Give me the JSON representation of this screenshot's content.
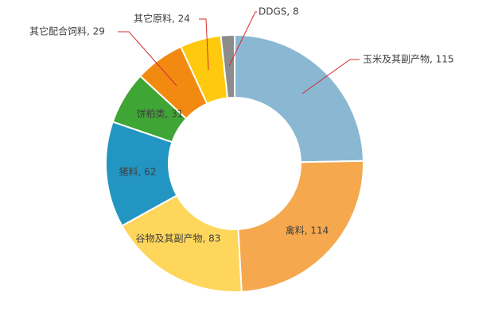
{
  "chart_data": {
    "type": "pie",
    "donut": true,
    "title": "",
    "slices": [
      {
        "name": "玉米及其副产物",
        "value": 115,
        "color": "#8AB8D3",
        "label": "玉米及其副产物, 115"
      },
      {
        "name": "禽料",
        "value": 114,
        "color": "#F5A84E",
        "label": "禽料, 114"
      },
      {
        "name": "谷物及其副产物",
        "value": 83,
        "color": "#FFD65C",
        "label": "谷物及其副产物, 83"
      },
      {
        "name": "猪料",
        "value": 62,
        "color": "#2395C2",
        "label": "猪料, 62"
      },
      {
        "name": "饼粕类",
        "value": 31,
        "color": "#3FA535",
        "label": "饼粕类, 31"
      },
      {
        "name": "其它配合饲料",
        "value": 29,
        "color": "#F28A12",
        "label": "其它配合饲料, 29"
      },
      {
        "name": "其它原料",
        "value": 24,
        "color": "#FFC90E",
        "label": "其它原料, 24"
      },
      {
        "name": "DDGS",
        "value": 8,
        "color": "#8C8C8C",
        "label": "DDGS, 8"
      }
    ]
  }
}
